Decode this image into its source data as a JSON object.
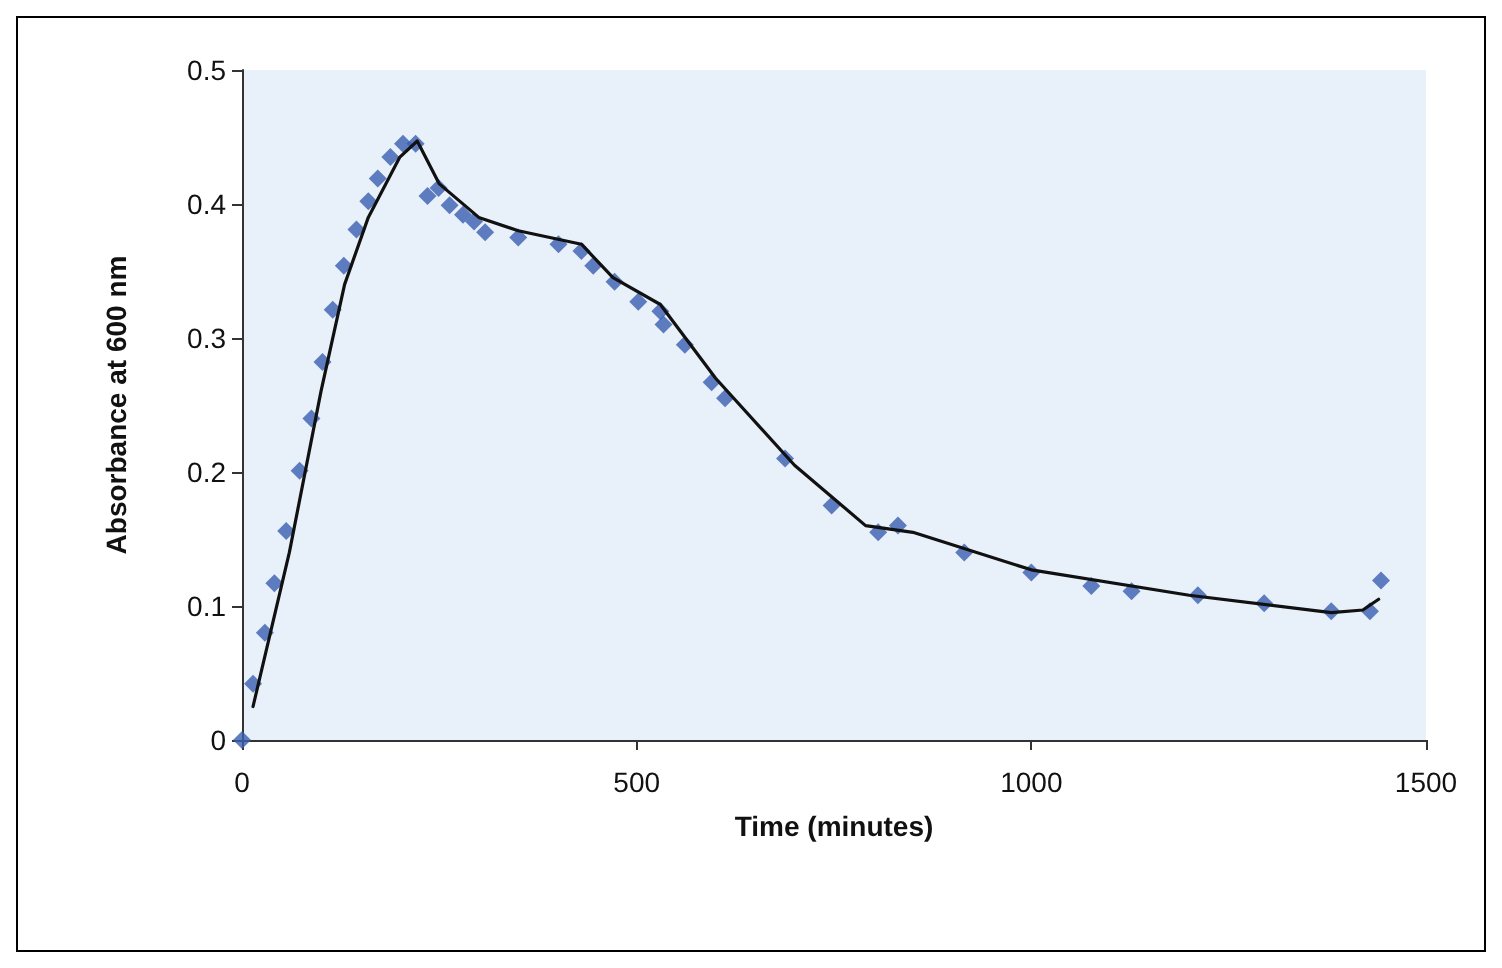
{
  "chart_data": {
    "type": "scatter",
    "xlabel": "Time (minutes)",
    "ylabel": "Absorbance at 600 nm",
    "xlim": [
      0,
      1500
    ],
    "xticks": [
      0,
      500,
      1000,
      1500
    ],
    "ylim": [
      0,
      0.5
    ],
    "yticks": [
      0,
      0.1,
      0.2,
      0.3,
      0.4,
      0.5
    ],
    "grid": false,
    "series": [
      {
        "marker": "diamond",
        "color": "#3a5fb0",
        "x": [
          0,
          14,
          29,
          41,
          56,
          73,
          88,
          102,
          115,
          129,
          145,
          160,
          172,
          188,
          204,
          220,
          235,
          249,
          263,
          280,
          294,
          308,
          350,
          401,
          430,
          445,
          472,
          502,
          530,
          534,
          561,
          595,
          612,
          688,
          747,
          806,
          831,
          915,
          1000,
          1076,
          1127,
          1211,
          1295,
          1380,
          1429,
          1443
        ],
        "values": [
          0,
          0.042,
          0.08,
          0.117,
          0.156,
          0.201,
          0.24,
          0.282,
          0.321,
          0.354,
          0.381,
          0.402,
          0.419,
          0.435,
          0.445,
          0.445,
          0.406,
          0.412,
          0.399,
          0.392,
          0.387,
          0.379,
          0.375,
          0.37,
          0.365,
          0.354,
          0.342,
          0.327,
          0.32,
          0.31,
          0.295,
          0.267,
          0.255,
          0.21,
          0.175,
          0.155,
          0.16,
          0.14,
          0.125,
          0.115,
          0.111,
          0.108,
          0.102,
          0.096,
          0.096,
          0.119
        ]
      },
      {
        "type": "line",
        "marker": "none",
        "line_style": "solid",
        "color": "#111111",
        "x": [
          14,
          60,
          100,
          130,
          160,
          200,
          222,
          250,
          300,
          350,
          430,
          470,
          530,
          600,
          700,
          790,
          850,
          1000,
          1200,
          1380,
          1420,
          1440
        ],
        "values": [
          0.025,
          0.14,
          0.26,
          0.34,
          0.39,
          0.435,
          0.447,
          0.415,
          0.39,
          0.38,
          0.37,
          0.345,
          0.325,
          0.27,
          0.205,
          0.16,
          0.155,
          0.127,
          0.108,
          0.095,
          0.097,
          0.105
        ]
      }
    ]
  }
}
